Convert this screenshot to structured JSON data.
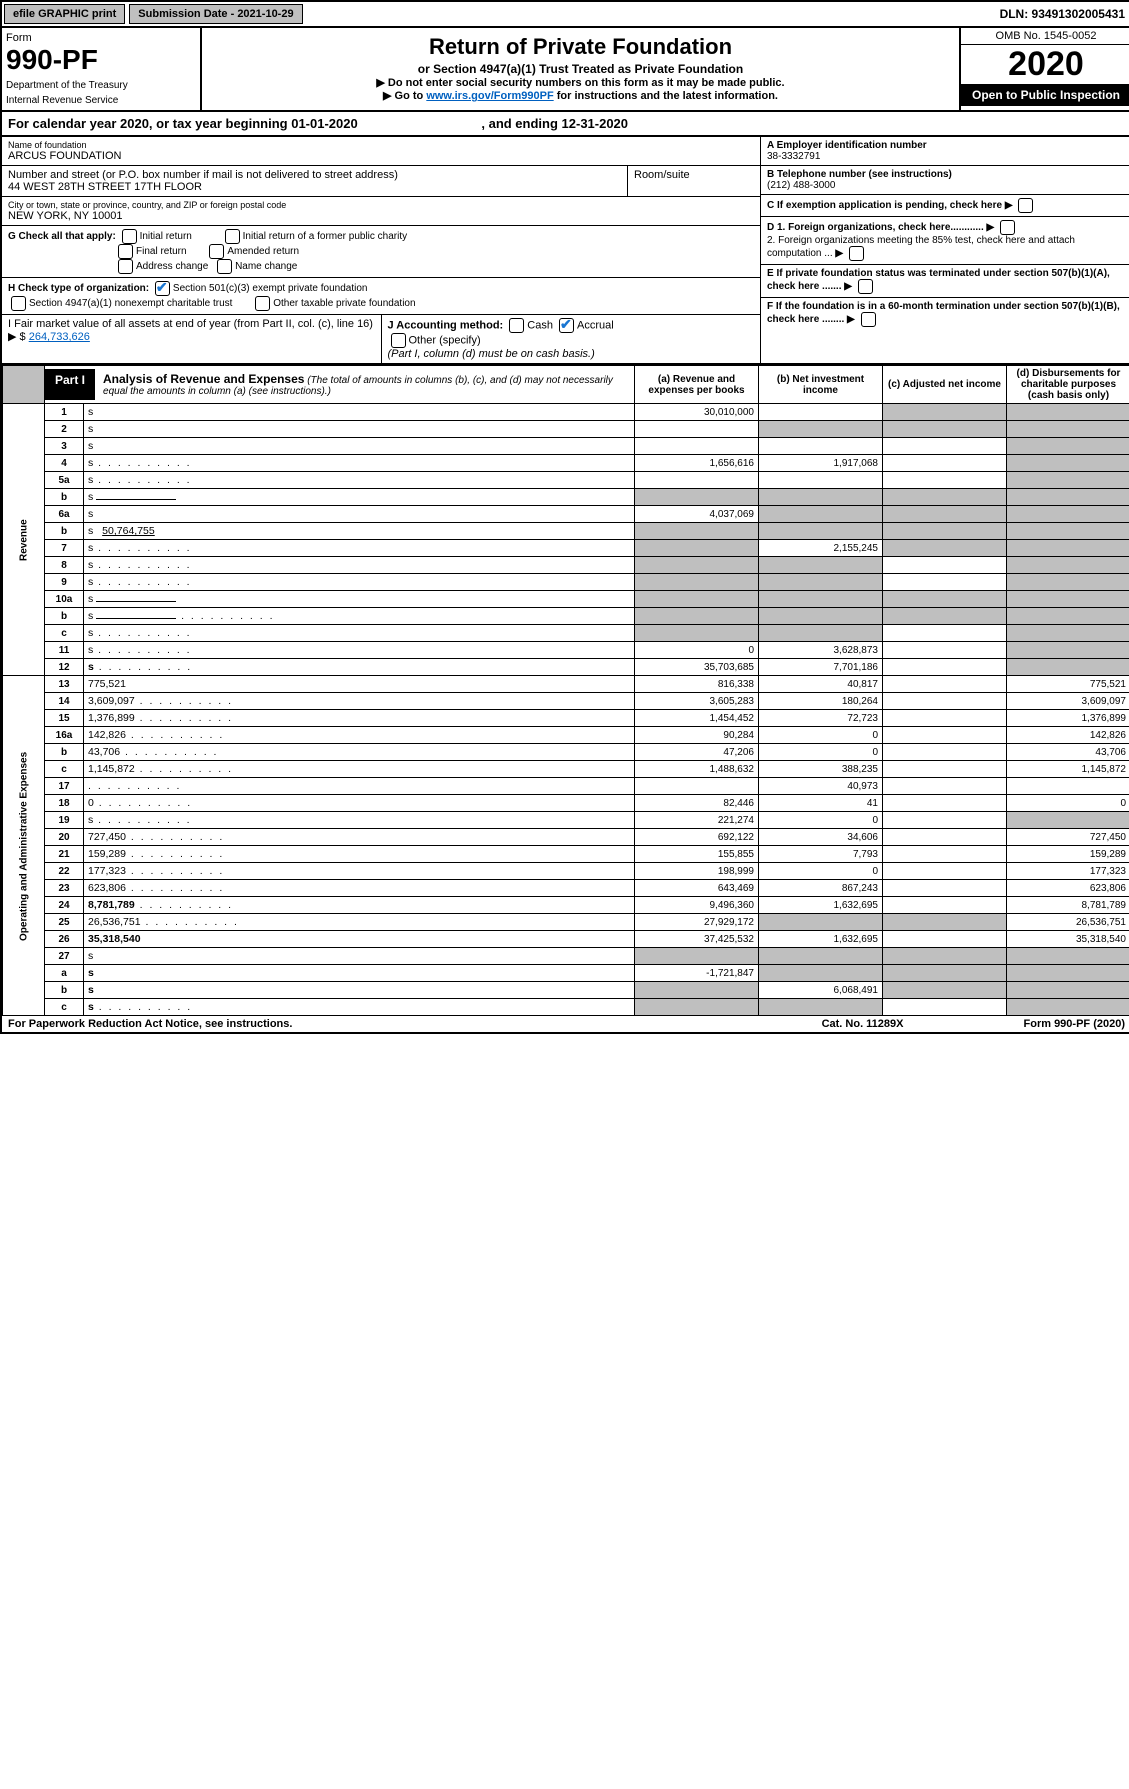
{
  "top": {
    "efile": "efile GRAPHIC print",
    "submission": "Submission Date - 2021-10-29",
    "dln": "DLN: 93491302005431"
  },
  "header": {
    "form_label": "Form",
    "form_num": "990-PF",
    "dept1": "Department of the Treasury",
    "dept2": "Internal Revenue Service",
    "title": "Return of Private Foundation",
    "subtitle": "or Section 4947(a)(1) Trust Treated as Private Foundation",
    "note1": "▶ Do not enter social security numbers on this form as it may be made public.",
    "note2_pre": "▶ Go to ",
    "note2_link": "www.irs.gov/Form990PF",
    "note2_post": " for instructions and the latest information.",
    "omb": "OMB No. 1545-0052",
    "year": "2020",
    "open": "Open to Public Inspection"
  },
  "cal": {
    "text_a": "For calendar year 2020, or tax year beginning 01-01-2020",
    "text_b": ", and ending 12-31-2020"
  },
  "info": {
    "name_label": "Name of foundation",
    "name": "ARCUS FOUNDATION",
    "addr_label": "Number and street (or P.O. box number if mail is not delivered to street address)",
    "addr": "44 WEST 28TH STREET 17TH FLOOR",
    "room_label": "Room/suite",
    "city_label": "City or town, state or province, country, and ZIP or foreign postal code",
    "city": "NEW YORK, NY  10001",
    "a_label": "A Employer identification number",
    "a_value": "38-3332791",
    "b_label": "B Telephone number (see instructions)",
    "b_value": "(212) 488-3000",
    "c_label": "C If exemption application is pending, check here",
    "d1": "D 1. Foreign organizations, check here............",
    "d2": "2. Foreign organizations meeting the 85% test, check here and attach computation ...",
    "e": "E  If private foundation status was terminated under section 507(b)(1)(A), check here .......",
    "f": "F  If the foundation is in a 60-month termination under section 507(b)(1)(B), check here ........",
    "g_label": "G Check all that apply:",
    "g_opts": [
      "Initial return",
      "Initial return of a former public charity",
      "Final return",
      "Amended return",
      "Address change",
      "Name change"
    ],
    "h_label": "H Check type of organization:",
    "h_opt1": "Section 501(c)(3) exempt private foundation",
    "h_opt2": "Section 4947(a)(1) nonexempt charitable trust",
    "h_opt3": "Other taxable private foundation",
    "i_label": "I Fair market value of all assets at end of year (from Part II, col. (c), line 16) ▶ $",
    "i_value": "264,733,626",
    "j_label": "J Accounting method:",
    "j_cash": "Cash",
    "j_accrual": "Accrual",
    "j_other": "Other (specify)",
    "j_note": "(Part I, column (d) must be on cash basis.)"
  },
  "part1": {
    "tab": "Part I",
    "title": "Analysis of Revenue and Expenses",
    "note": "(The total of amounts in columns (b), (c), and (d) may not necessarily equal the amounts in column (a) (see instructions).)",
    "cols": {
      "a": "(a)   Revenue and expenses per books",
      "b": "(b)   Net investment income",
      "c": "(c)   Adjusted net income",
      "d": "(d)   Disbursements for charitable purposes (cash basis only)"
    }
  },
  "sections": {
    "revenue": "Revenue",
    "expenses": "Operating and Administrative Expenses"
  },
  "rows": [
    {
      "n": "1",
      "d": "s",
      "a": "30,010,000",
      "b": "",
      "c": "s"
    },
    {
      "n": "2",
      "d": "s",
      "a": "",
      "b": "s",
      "c": "s",
      "bold_not": true
    },
    {
      "n": "3",
      "d": "s",
      "a": "",
      "b": "",
      "c": ""
    },
    {
      "n": "4",
      "d": "s",
      "a": "1,656,616",
      "b": "1,917,068",
      "c": "",
      "dots": true
    },
    {
      "n": "5a",
      "d": "s",
      "a": "",
      "b": "",
      "c": "",
      "dots": true
    },
    {
      "n": "b",
      "d": "s",
      "a": "s",
      "b": "s",
      "c": "s",
      "inline": true
    },
    {
      "n": "6a",
      "d": "s",
      "a": "4,037,069",
      "b": "s",
      "c": "s"
    },
    {
      "n": "b",
      "d": "s",
      "a": "s",
      "b": "s",
      "c": "s",
      "inline_val": "50,764,755"
    },
    {
      "n": "7",
      "d": "s",
      "a": "s",
      "b": "2,155,245",
      "c": "s",
      "dots": true
    },
    {
      "n": "8",
      "d": "s",
      "a": "s",
      "b": "s",
      "c": "",
      "dots": true
    },
    {
      "n": "9",
      "d": "s",
      "a": "s",
      "b": "s",
      "c": "",
      "dots": true
    },
    {
      "n": "10a",
      "d": "s",
      "a": "s",
      "b": "s",
      "c": "s",
      "inline": true
    },
    {
      "n": "b",
      "d": "s",
      "a": "s",
      "b": "s",
      "c": "s",
      "inline": true,
      "dots": true
    },
    {
      "n": "c",
      "d": "s",
      "a": "s",
      "b": "s",
      "c": "",
      "dots": true
    },
    {
      "n": "11",
      "d": "s",
      "a": "0",
      "b": "3,628,873",
      "c": "",
      "dots": true
    },
    {
      "n": "12",
      "d": "s",
      "a": "35,703,685",
      "b": "7,701,186",
      "c": "",
      "bold": true,
      "dots": true
    }
  ],
  "exp_rows": [
    {
      "n": "13",
      "d": "775,521",
      "a": "816,338",
      "b": "40,817",
      "c": ""
    },
    {
      "n": "14",
      "d": "3,609,097",
      "a": "3,605,283",
      "b": "180,264",
      "c": "",
      "dots": true
    },
    {
      "n": "15",
      "d": "1,376,899",
      "a": "1,454,452",
      "b": "72,723",
      "c": "",
      "dots": true
    },
    {
      "n": "16a",
      "d": "142,826",
      "a": "90,284",
      "b": "0",
      "c": "",
      "dots": true
    },
    {
      "n": "b",
      "d": "43,706",
      "a": "47,206",
      "b": "0",
      "c": "",
      "dots": true
    },
    {
      "n": "c",
      "d": "1,145,872",
      "a": "1,488,632",
      "b": "388,235",
      "c": "",
      "dots": true
    },
    {
      "n": "17",
      "d": "",
      "a": "",
      "b": "40,973",
      "c": "",
      "dots": true
    },
    {
      "n": "18",
      "d": "0",
      "a": "82,446",
      "b": "41",
      "c": "",
      "dots": true
    },
    {
      "n": "19",
      "d": "s",
      "a": "221,274",
      "b": "0",
      "c": "",
      "dots": true
    },
    {
      "n": "20",
      "d": "727,450",
      "a": "692,122",
      "b": "34,606",
      "c": "",
      "dots": true
    },
    {
      "n": "21",
      "d": "159,289",
      "a": "155,855",
      "b": "7,793",
      "c": "",
      "dots": true
    },
    {
      "n": "22",
      "d": "177,323",
      "a": "198,999",
      "b": "0",
      "c": "",
      "dots": true
    },
    {
      "n": "23",
      "d": "623,806",
      "a": "643,469",
      "b": "867,243",
      "c": "",
      "dots": true
    },
    {
      "n": "24",
      "d": "8,781,789",
      "a": "9,496,360",
      "b": "1,632,695",
      "c": "",
      "bold": true,
      "dots": true,
      "two_line": true
    },
    {
      "n": "25",
      "d": "26,536,751",
      "a": "27,929,172",
      "b": "s",
      "c": "s",
      "dots": true
    },
    {
      "n": "26",
      "d": "35,318,540",
      "a": "37,425,532",
      "b": "1,632,695",
      "c": "",
      "bold": true
    },
    {
      "n": "27",
      "d": "s",
      "a": "s",
      "b": "s",
      "c": "s"
    },
    {
      "n": "a",
      "d": "s",
      "a": "-1,721,847",
      "b": "s",
      "c": "s",
      "bold": true
    },
    {
      "n": "b",
      "d": "s",
      "a": "s",
      "b": "6,068,491",
      "c": "s",
      "bold": true
    },
    {
      "n": "c",
      "d": "s",
      "a": "s",
      "b": "s",
      "c": "",
      "bold": true,
      "dots": true
    }
  ],
  "footer": {
    "left": "For Paperwork Reduction Act Notice, see instructions.",
    "mid": "Cat. No. 11289X",
    "right": "Form 990-PF (2020)"
  }
}
